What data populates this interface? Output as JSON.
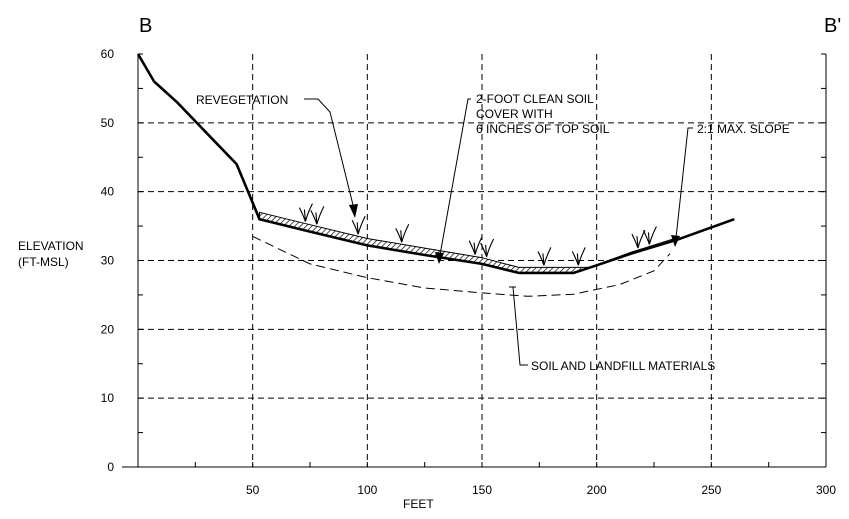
{
  "section": {
    "start_label": "B",
    "end_label": "B'"
  },
  "axes": {
    "x_label": "FEET",
    "y_label_line1": "ELEVATION",
    "y_label_line2": "(FT-MSL)",
    "x_ticks": [
      "50",
      "100",
      "150",
      "200",
      "250",
      "300"
    ],
    "y_ticks": [
      "0",
      "10",
      "20",
      "30",
      "40",
      "50",
      "60"
    ]
  },
  "annotations": {
    "revegetation": "REVEGETATION",
    "cover_line1": "2-FOOT CLEAN SOIL",
    "cover_line2": "COVER WITH",
    "cover_line3": "6 INCHES OF TOP SOIL",
    "slope": "2:1 MAX. SLOPE",
    "soil": "SOIL AND LANDFILL MATERIALS"
  },
  "chart_data": {
    "type": "line",
    "xlabel": "FEET",
    "ylabel": "ELEVATION (FT-MSL)",
    "xlim": [
      0,
      300
    ],
    "ylim": [
      0,
      60
    ],
    "grid": true,
    "series": [
      {
        "x": [
          0,
          7,
          17,
          30,
          43,
          48,
          53,
          75,
          100,
          125,
          150,
          166,
          175,
          190,
          200,
          215,
          235,
          260
        ],
        "y": [
          60,
          56,
          53,
          48.5,
          44,
          40,
          36,
          34.2,
          32.2,
          30.8,
          29.5,
          28.2,
          28.2,
          28.2,
          29.3,
          31,
          33,
          36
        ]
      },
      {
        "x": [
          53,
          75,
          100,
          125,
          150,
          166,
          175,
          190,
          197,
          215,
          235
        ],
        "y": [
          37,
          35.2,
          33.2,
          31.8,
          30.4,
          29,
          29,
          29,
          29,
          31.2,
          33.3
        ]
      },
      {
        "x": [
          50,
          75,
          100,
          125,
          150,
          170,
          190,
          210,
          225,
          232
        ],
        "y": [
          33.5,
          29.5,
          27.5,
          26,
          25.3,
          24.8,
          25.1,
          26.5,
          28.5,
          31
        ]
      }
    ]
  }
}
